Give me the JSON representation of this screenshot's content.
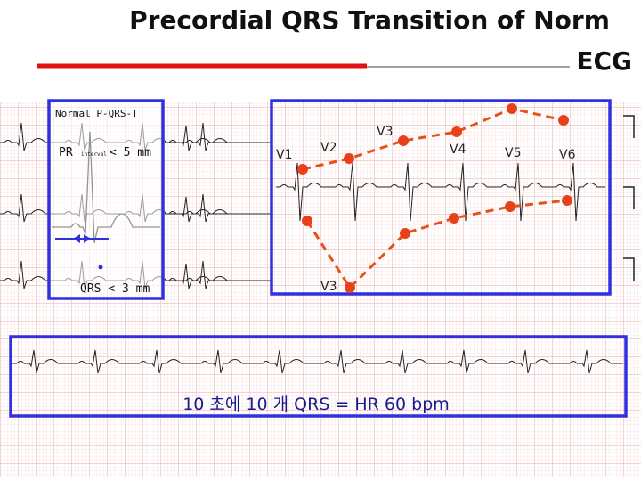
{
  "title": {
    "line1": "Precordial QRS Transition of Norm",
    "line2": "ECG"
  },
  "inset": {
    "heading": "Normal P-QRS-T",
    "pr": "PR",
    "pr_sub": "interval",
    "pr_value": "< 5 mm",
    "qrs": "QRS < 3 mm"
  },
  "leads": [
    "V1",
    "V2",
    "V3",
    "V4",
    "V5",
    "V6"
  ],
  "lead_v3_lower": "V3",
  "caption": "10 초에 10 개 QRS = HR 60 bpm"
}
